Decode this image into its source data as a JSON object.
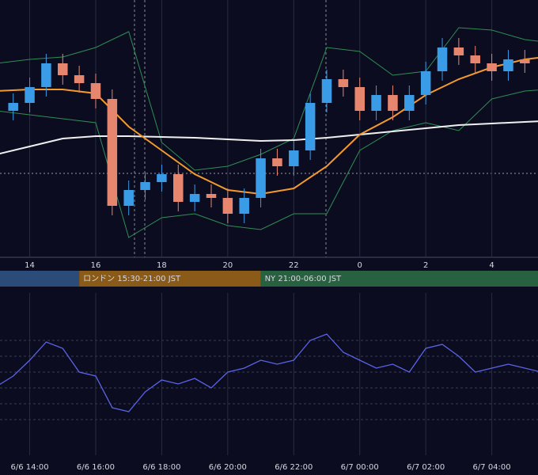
{
  "chart_data": [
    {
      "type": "candlestick",
      "xlim": [
        13.1,
        29.4
      ],
      "ylim": [
        0,
        325
      ],
      "xticks": [
        14,
        16,
        18,
        20,
        22,
        {
          "value": 24,
          "label": "0"
        },
        {
          "value": 26,
          "label": "2"
        },
        {
          "value": 28,
          "label": "4"
        }
      ],
      "x": [
        13.5,
        14,
        14.5,
        15,
        15.5,
        16,
        16.5,
        17,
        17.5,
        18,
        18.5,
        19,
        19.5,
        20,
        20.5,
        21,
        21.5,
        22,
        22.5,
        23,
        23.5,
        24,
        24.5,
        25,
        25.5,
        26,
        26.5,
        27,
        27.5,
        28,
        28.5,
        29
      ],
      "open": [
        185,
        195,
        215,
        245,
        230,
        220,
        200,
        65,
        85,
        95,
        105,
        70,
        80,
        75,
        55,
        75,
        125,
        115,
        135,
        195,
        225,
        215,
        185,
        205,
        185,
        205,
        235,
        265,
        255,
        245,
        235,
        250
      ],
      "high": [
        207,
        227,
        257,
        257,
        242,
        232,
        212,
        97,
        107,
        117,
        117,
        92,
        92,
        87,
        87,
        137,
        137,
        147,
        207,
        237,
        237,
        227,
        217,
        217,
        217,
        247,
        277,
        277,
        267,
        257,
        262,
        262
      ],
      "low": [
        173,
        183,
        203,
        218,
        208,
        188,
        53,
        53,
        73,
        83,
        58,
        58,
        63,
        43,
        43,
        63,
        103,
        103,
        123,
        183,
        203,
        173,
        173,
        173,
        173,
        193,
        223,
        243,
        233,
        223,
        223,
        233
      ],
      "close": [
        195,
        215,
        245,
        230,
        220,
        200,
        65,
        85,
        95,
        105,
        70,
        80,
        75,
        55,
        75,
        125,
        115,
        135,
        195,
        225,
        215,
        185,
        205,
        185,
        205,
        235,
        265,
        255,
        245,
        235,
        250,
        245
      ],
      "up_color": "#3a9be6",
      "down_color": "#e7866f",
      "line_x": [
        13,
        14,
        15,
        16,
        17,
        18,
        19,
        20,
        21,
        22,
        23,
        24,
        25,
        26,
        27,
        28,
        29,
        30
      ],
      "lines": [
        {
          "color": "#2f8f55",
          "values": [
            245,
            250,
            253,
            265,
            285,
            145,
            110,
            115,
            130,
            150,
            265,
            260,
            230,
            235,
            290,
            287,
            275,
            270
          ]
        },
        {
          "color": "#2f8f55",
          "values": [
            185,
            180,
            175,
            170,
            25,
            50,
            55,
            40,
            35,
            55,
            55,
            135,
            160,
            170,
            160,
            200,
            210,
            213
          ]
        },
        {
          "color": "#f0f0f0",
          "values": [
            130,
            140,
            150,
            153,
            153,
            152,
            151,
            149,
            147,
            148,
            151,
            155,
            159,
            163,
            167,
            169,
            171,
            173
          ]
        },
        {
          "color": "#f39a2e",
          "values": [
            210,
            212,
            212,
            207,
            165,
            135,
            105,
            85,
            80,
            87,
            115,
            155,
            177,
            205,
            225,
            240,
            250,
            255
          ]
        }
      ],
      "sessions": [
        {
          "label": "ロンドン 15:30-21:00 JST",
          "start": 15.5,
          "end": 21,
          "color": "#8a5a18"
        },
        {
          "label": "NY 21:00-06:00 JST",
          "start": 21,
          "end": 30,
          "color": "#27613f"
        }
      ],
      "session_color": "#2b4c78",
      "grid": true
    },
    {
      "type": "line",
      "xlim": [
        13.1,
        29.4
      ],
      "ylim": [
        0,
        205
      ],
      "xticks": [
        {
          "value": 14,
          "label": "6/6 14:00"
        },
        {
          "value": 16,
          "label": "6/6 16:00"
        },
        {
          "value": 18,
          "label": "6/6 18:00"
        },
        {
          "value": 20,
          "label": "6/6 20:00"
        },
        {
          "value": 22,
          "label": "6/6 22:00"
        },
        {
          "value": 24,
          "label": "6/7 00:00"
        },
        {
          "value": 26,
          "label": "6/7 02:00"
        },
        {
          "value": 28,
          "label": "6/7 04:00"
        }
      ],
      "x": [
        13,
        13.5,
        14,
        14.5,
        15,
        15.5,
        16,
        16.5,
        17,
        17.5,
        18,
        18.5,
        19,
        19.5,
        20,
        20.5,
        21,
        21.5,
        22,
        22.5,
        23,
        23.5,
        24,
        24.5,
        25,
        25.5,
        26,
        26.5,
        27,
        27.5,
        28,
        28.5,
        29,
        29.5
      ],
      "values": [
        87,
        100,
        120,
        143,
        135,
        105,
        100,
        60,
        55,
        80,
        95,
        90,
        97,
        85,
        105,
        110,
        120,
        115,
        120,
        145,
        153,
        130,
        120,
        110,
        115,
        105,
        135,
        140,
        125,
        105,
        110,
        115,
        110,
        105
      ],
      "color": "#5b63e6",
      "grid": true
    }
  ]
}
